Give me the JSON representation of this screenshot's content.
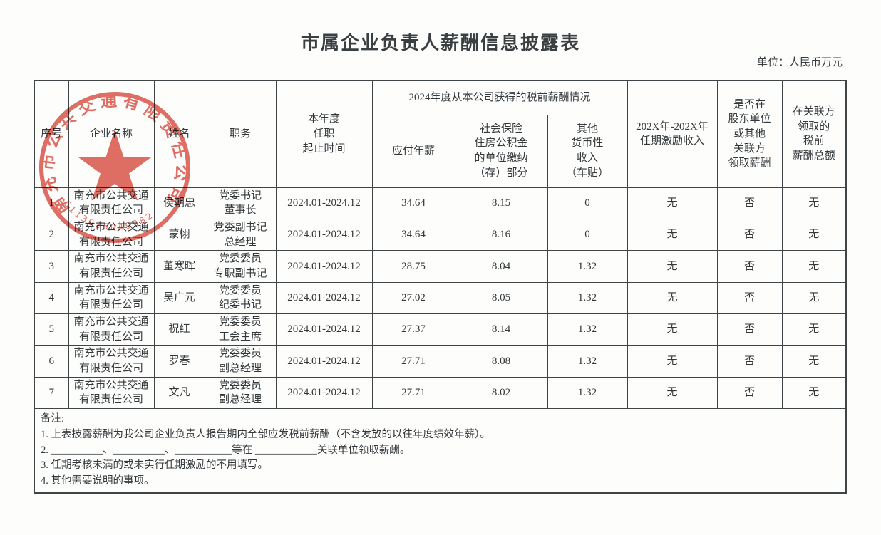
{
  "page": {
    "title": "市属企业负责人薪酬信息披露表",
    "unit_label": "单位：人民币万元"
  },
  "table": {
    "headers": {
      "seq": "序号",
      "company": "企业名称",
      "name": "姓名",
      "position": "职务",
      "term": "本年度\n任职\n起止时间",
      "salary_group": "2024年度从本公司获得的税前薪酬情况",
      "payable_salary": "应付年薪",
      "insurance_fund": "社会保险\n住房公积金\n的单位缴纳\n（存）部分",
      "other_income": "其他\n货币性\n收入\n（车贴）",
      "term_incentive": "202X年-202X年\n任期激励收入",
      "shareholder_pay": "是否在\n股东单位\n或其他\n关联方\n领取薪酬",
      "related_total": "在关联方\n领取的\n税前\n薪酬总额"
    },
    "rows": [
      [
        "1",
        "南充市公共交通\n有限责任公司",
        "侯朝忠",
        "党委书记\n董事长",
        "2024.01-2024.12",
        "34.64",
        "8.15",
        "0",
        "无",
        "否",
        "无"
      ],
      [
        "2",
        "南充市公共交通\n有限责任公司",
        "蒙栩",
        "党委副书记\n总经理",
        "2024.01-2024.12",
        "34.64",
        "8.16",
        "0",
        "无",
        "否",
        "无"
      ],
      [
        "3",
        "南充市公共交通\n有限责任公司",
        "董寒晖",
        "党委委员\n专职副书记",
        "2024.01-2024.12",
        "28.75",
        "8.04",
        "1.32",
        "无",
        "否",
        "无"
      ],
      [
        "4",
        "南充市公共交通\n有限责任公司",
        "吴广元",
        "党委委员\n纪委书记",
        "2024.01-2024.12",
        "27.02",
        "8.05",
        "1.32",
        "无",
        "否",
        "无"
      ],
      [
        "5",
        "南充市公共交通\n有限责任公司",
        "祝红",
        "党委委员\n工会主席",
        "2024.01-2024.12",
        "27.37",
        "8.14",
        "1.32",
        "无",
        "否",
        "无"
      ],
      [
        "6",
        "南充市公共交通\n有限责任公司",
        "罗春",
        "党委委员\n副总经理",
        "2024.01-2024.12",
        "27.71",
        "8.08",
        "1.32",
        "无",
        "否",
        "无"
      ],
      [
        "7",
        "南充市公共交通\n有限责任公司",
        "文凡",
        "党委委员\n副总经理",
        "2024.01-2024.12",
        "27.71",
        "8.02",
        "1.32",
        "无",
        "否",
        "无"
      ]
    ]
  },
  "notes": {
    "label": "备注:",
    "items": [
      "1. 上表披露薪酬为我公司企业负责人报告期内全部应发税前薪酬（不含发放的以往年度绩效年薪）。",
      "2. __________、__________、___________等在 ____________关联单位领取薪酬。",
      "3. 任期考核未满的或未实行任期激励的不用填写。",
      "4. 其他需要说明的事项。"
    ]
  },
  "stamp": {
    "company": "南充市公共交通有限责任公司",
    "code": "6113025049982",
    "color": "#d94a3c"
  }
}
